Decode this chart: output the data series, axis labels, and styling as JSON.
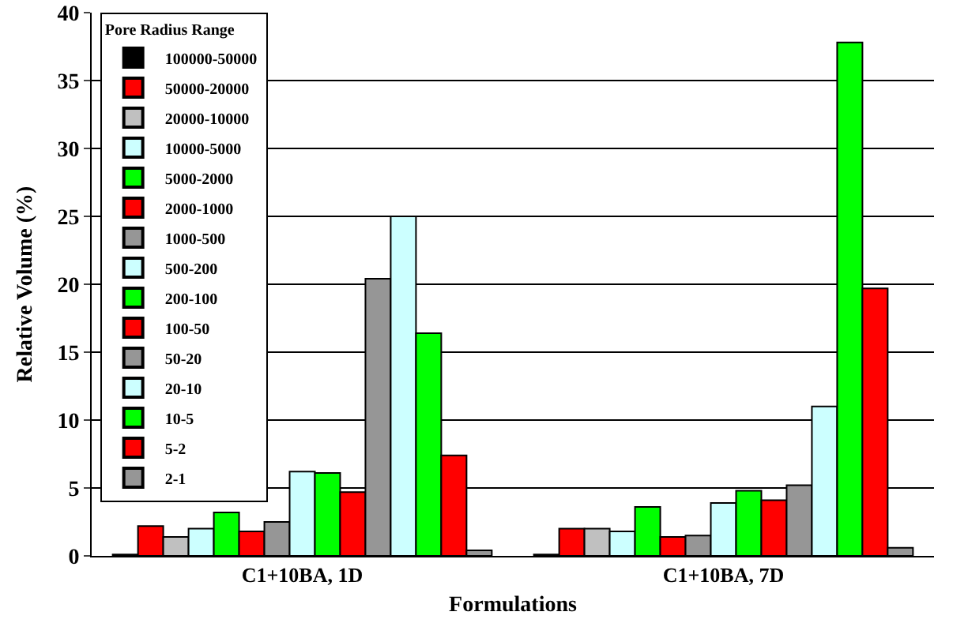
{
  "chart_data": {
    "type": "bar",
    "xlabel": "Formulations",
    "ylabel": "Relative Volume (%)",
    "legend_title": "Pore Radius Range",
    "categories": [
      "C1+10BA, 1D",
      "C1+10BA, 7D"
    ],
    "ylim": [
      0,
      40
    ],
    "yticks": [
      0,
      5,
      10,
      15,
      20,
      25,
      30,
      35,
      40
    ],
    "grid": "y",
    "legend": "top left",
    "series": [
      {
        "name": "100000-50000",
        "color": "#000000",
        "values": [
          0.1,
          0.1
        ]
      },
      {
        "name": "50000-20000",
        "color": "#ff0000",
        "values": [
          2.2,
          2.0
        ]
      },
      {
        "name": "20000-10000",
        "color": "#c0c0c0",
        "values": [
          1.4,
          2.0
        ]
      },
      {
        "name": "10000-5000",
        "color": "#ccffff",
        "values": [
          2.0,
          1.8
        ]
      },
      {
        "name": "5000-2000",
        "color": "#00ff00",
        "values": [
          3.2,
          3.6
        ]
      },
      {
        "name": "2000-1000",
        "color": "#ff0000",
        "values": [
          1.8,
          1.4
        ]
      },
      {
        "name": "1000-500",
        "color": "#969696",
        "values": [
          2.5,
          1.5
        ]
      },
      {
        "name": "500-200",
        "color": "#ccffff",
        "values": [
          6.2,
          3.9
        ]
      },
      {
        "name": "200-100",
        "color": "#00ff00",
        "values": [
          6.1,
          4.8
        ]
      },
      {
        "name": "100-50",
        "color": "#ff0000",
        "values": [
          4.7,
          4.1
        ]
      },
      {
        "name": "50-20",
        "color": "#969696",
        "values": [
          20.4,
          5.2
        ]
      },
      {
        "name": "20-10",
        "color": "#ccffff",
        "values": [
          25.0,
          11.0
        ]
      },
      {
        "name": "10-5",
        "color": "#00ff00",
        "values": [
          16.4,
          37.8
        ]
      },
      {
        "name": "5-2",
        "color": "#ff0000",
        "values": [
          7.4,
          19.7
        ]
      },
      {
        "name": "2-1",
        "color": "#969696",
        "values": [
          0.4,
          0.6
        ]
      }
    ]
  }
}
